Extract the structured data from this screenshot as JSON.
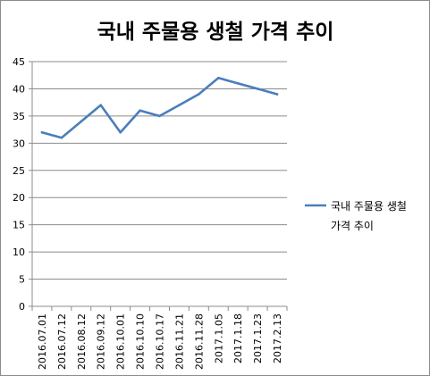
{
  "chart_data": {
    "type": "line",
    "title": "국내 주물용 생철 가격 추이",
    "xlabel": "",
    "ylabel": "",
    "categories": [
      "2016.07.01",
      "2016.07.12",
      "2016.08.12",
      "2016.09.12",
      "2016.10.01",
      "2016.10.10",
      "2016.10.17",
      "2016.11.21",
      "2016.11.28",
      "2017.1.05",
      "2017.1.18",
      "2017.1.23",
      "2017.2.13"
    ],
    "series": [
      {
        "name": "국내 주물용 생철 가격 추이",
        "name_lines": [
          "국내 주물용 생철",
          "가격 추이"
        ],
        "values": [
          32,
          31,
          34,
          37,
          32,
          36,
          35,
          37,
          39,
          42,
          41,
          40,
          39
        ],
        "color": "#4a7ebb"
      }
    ],
    "ylim": [
      0,
      45
    ],
    "yticks": [
      0,
      5,
      10,
      15,
      20,
      25,
      30,
      35,
      40,
      45
    ],
    "grid": "horizontal",
    "legend_position": "right"
  }
}
